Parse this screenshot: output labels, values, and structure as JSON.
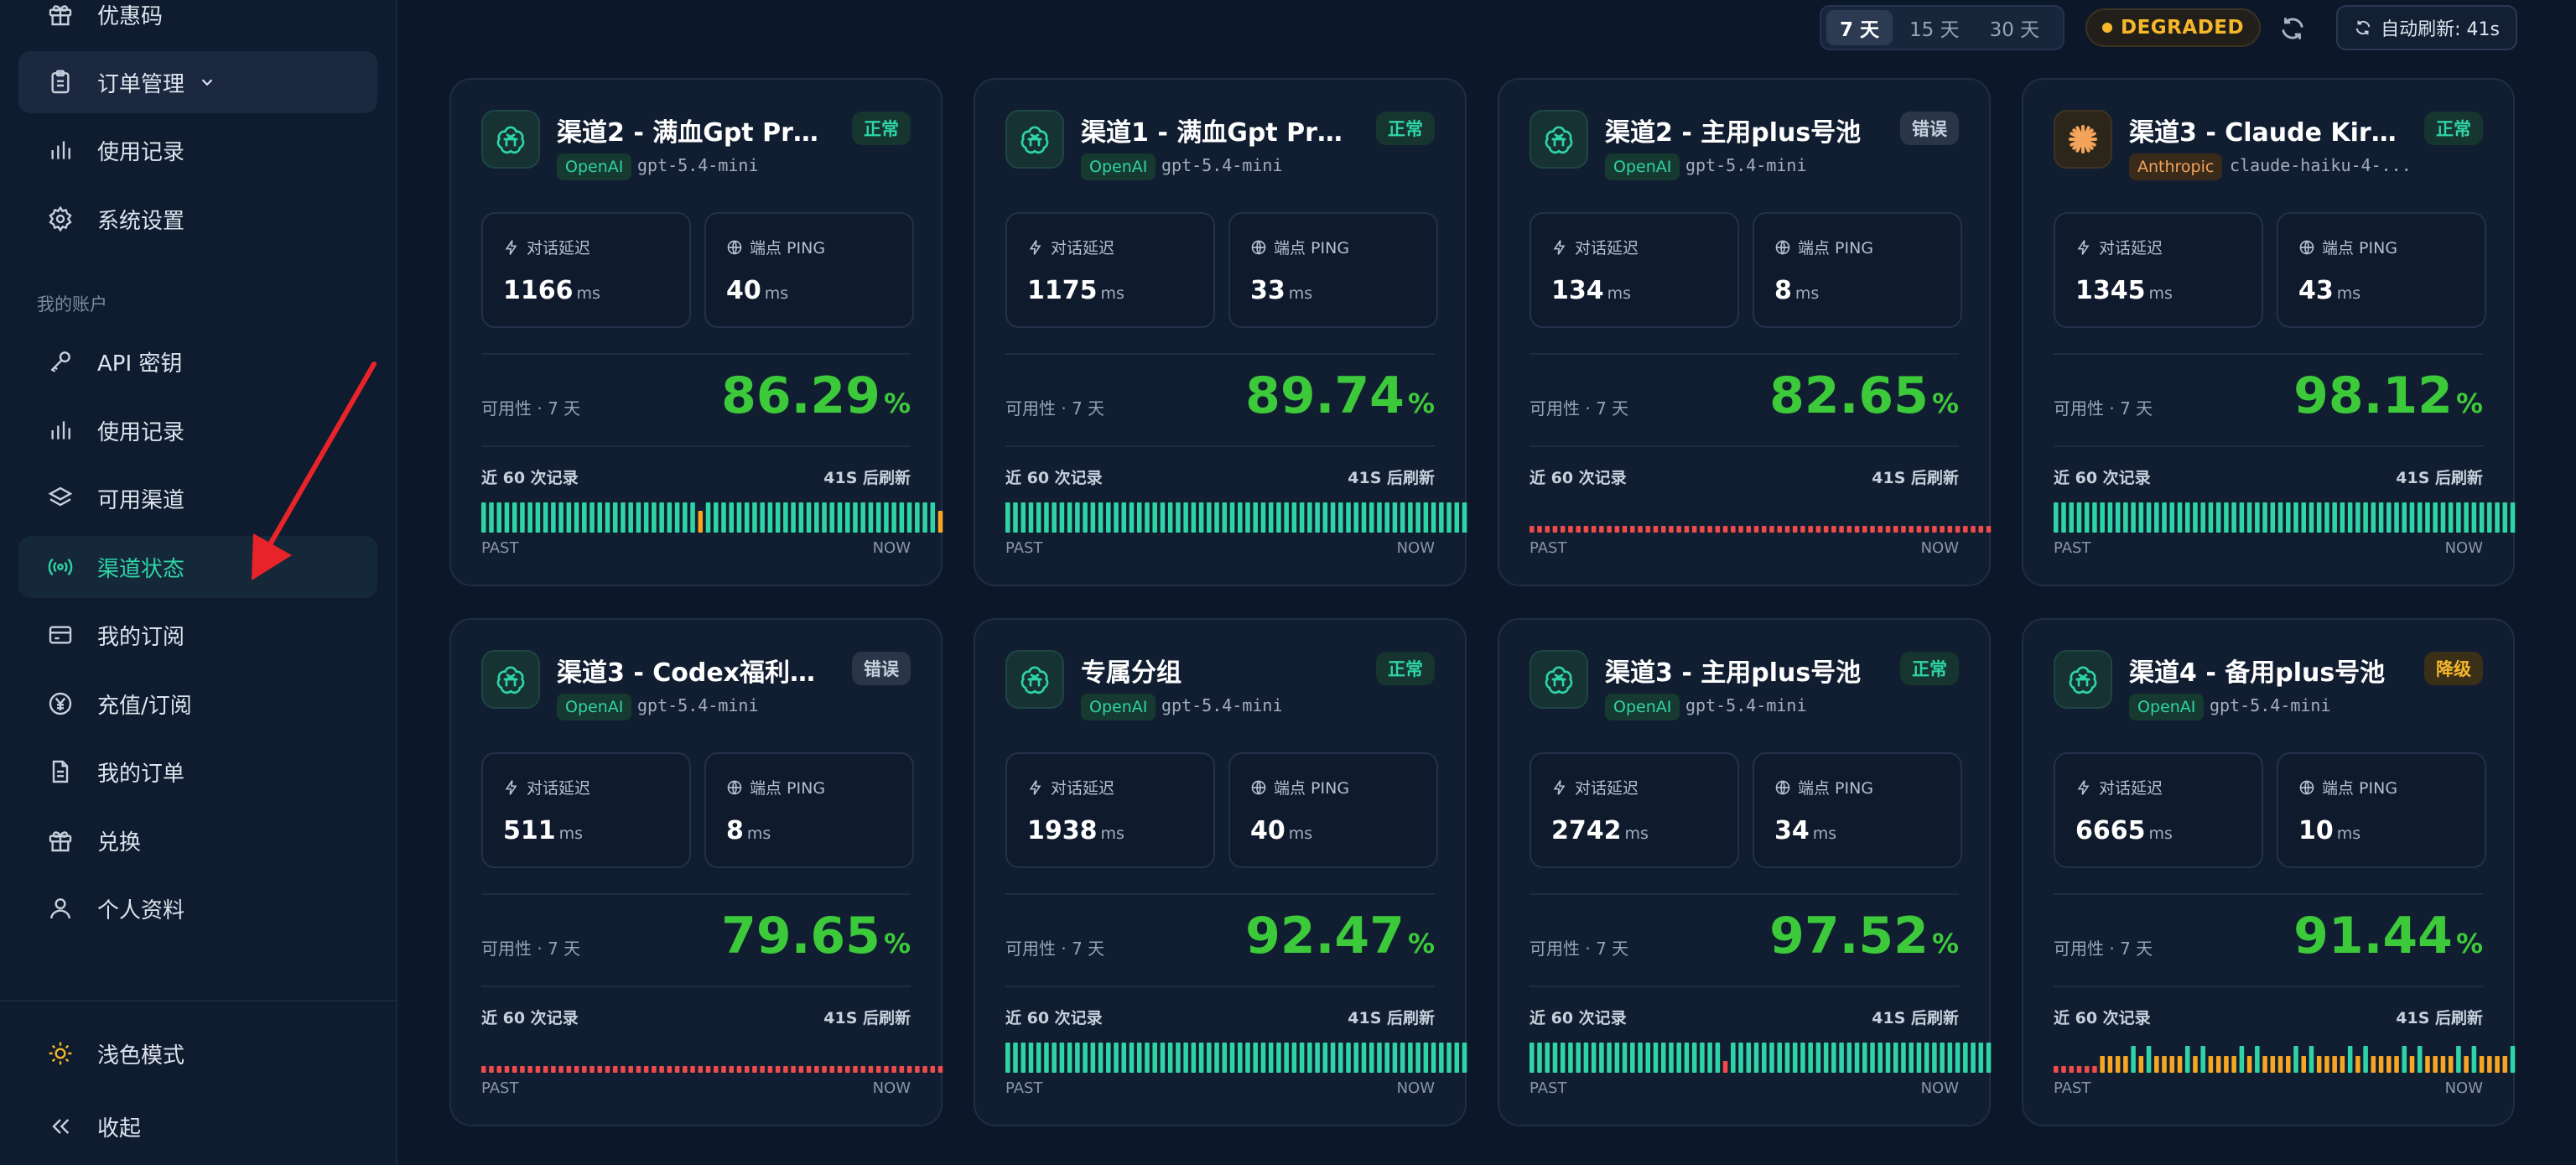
{
  "sidebar": {
    "top_items": [
      {
        "label": "优惠码",
        "icon": "gift-icon"
      },
      {
        "label": "订单管理",
        "icon": "clipboard-icon"
      },
      {
        "label": "使用记录",
        "icon": "bar-chart-icon"
      },
      {
        "label": "系统设置",
        "icon": "gear-icon"
      }
    ],
    "section_label": "我的账户",
    "account_items": [
      {
        "label": "API 密钥",
        "icon": "key-icon"
      },
      {
        "label": "使用记录",
        "icon": "bar-chart-icon"
      },
      {
        "label": "可用渠道",
        "icon": "layers-icon"
      },
      {
        "label": "渠道状态",
        "icon": "signal-icon"
      },
      {
        "label": "我的订阅",
        "icon": "credit-card-icon"
      },
      {
        "label": "充值/订阅",
        "icon": "yen-icon"
      },
      {
        "label": "我的订单",
        "icon": "document-icon"
      },
      {
        "label": "兑换",
        "icon": "gift-icon"
      },
      {
        "label": "个人资料",
        "icon": "user-icon"
      }
    ],
    "bottom_items": [
      {
        "label": "浅色模式",
        "icon": "sun-icon"
      },
      {
        "label": "收起",
        "icon": "double-chevron-left-icon"
      }
    ],
    "active_item": "渠道状态"
  },
  "topbar": {
    "ranges": [
      "7 天",
      "15 天",
      "30 天"
    ],
    "active_range": "7 天",
    "status": "DEGRADED",
    "auto_refresh": "自动刷新: 41s"
  },
  "labels": {
    "latency": "对话延迟",
    "ping": "端点 PING",
    "unit": "ms",
    "availability": "可用性 · 7 天",
    "recent": "近 60 次记录",
    "refresh_in": "41S 后刷新",
    "past": "PAST",
    "now": "NOW",
    "pct": "%"
  },
  "colors": {
    "ok": "#2fd4a6",
    "warn": "#f6a623",
    "err": "#ef4b4b",
    "avail": "#3cc93a"
  },
  "cards": [
    {
      "title": "渠道2 - 满血Gpt Pro...",
      "status": "正常",
      "status_type": "ok",
      "vendor": "OpenAI",
      "model": "gpt-5.4-mini",
      "latency": "1166",
      "ping": "40",
      "availability": "86.29",
      "history_pattern": "ok_mostly",
      "history_warn_at": [
        28,
        59
      ]
    },
    {
      "title": "渠道1 - 满血Gpt Pro...",
      "status": "正常",
      "status_type": "ok",
      "vendor": "OpenAI",
      "model": "gpt-5.4-mini",
      "latency": "1175",
      "ping": "33",
      "availability": "89.74",
      "history_pattern": "ok_mostly",
      "history_warn_at": []
    },
    {
      "title": "渠道2 - 主用plus号池",
      "status": "错误",
      "status_type": "err",
      "vendor": "OpenAI",
      "model": "gpt-5.4-mini",
      "latency": "134",
      "ping": "8",
      "availability": "82.65",
      "history_pattern": "err_all",
      "history_warn_at": []
    },
    {
      "title": "渠道3 - Claude Kiro...",
      "status": "正常",
      "status_type": "ok",
      "vendor": "Anthropic",
      "model": "claude-haiku-4-...",
      "latency": "1345",
      "ping": "43",
      "availability": "98.12",
      "history_pattern": "ok_mostly",
      "history_warn_at": []
    },
    {
      "title": "渠道3 - Codex福利分...",
      "status": "错误",
      "status_type": "err",
      "vendor": "OpenAI",
      "model": "gpt-5.4-mini",
      "latency": "511",
      "ping": "8",
      "availability": "79.65",
      "history_pattern": "err_all",
      "history_warn_at": []
    },
    {
      "title": "专属分组",
      "status": "正常",
      "status_type": "ok",
      "vendor": "OpenAI",
      "model": "gpt-5.4-mini",
      "latency": "1938",
      "ping": "40",
      "availability": "92.47",
      "history_pattern": "ok_mostly",
      "history_warn_at": []
    },
    {
      "title": "渠道3 - 主用plus号池",
      "status": "正常",
      "status_type": "ok",
      "vendor": "OpenAI",
      "model": "gpt-5.4-mini",
      "latency": "2742",
      "ping": "34",
      "availability": "97.52",
      "history_pattern": "ok_mostly",
      "history_err_at": [
        25
      ],
      "history_warn_at": []
    },
    {
      "title": "渠道4 - 备用plus号池",
      "status": "降级",
      "status_type": "warn",
      "vendor": "OpenAI",
      "model": "gpt-5.4-mini",
      "latency": "6665",
      "ping": "10",
      "availability": "91.44",
      "history_pattern": "mixed",
      "history_warn_at": []
    }
  ]
}
